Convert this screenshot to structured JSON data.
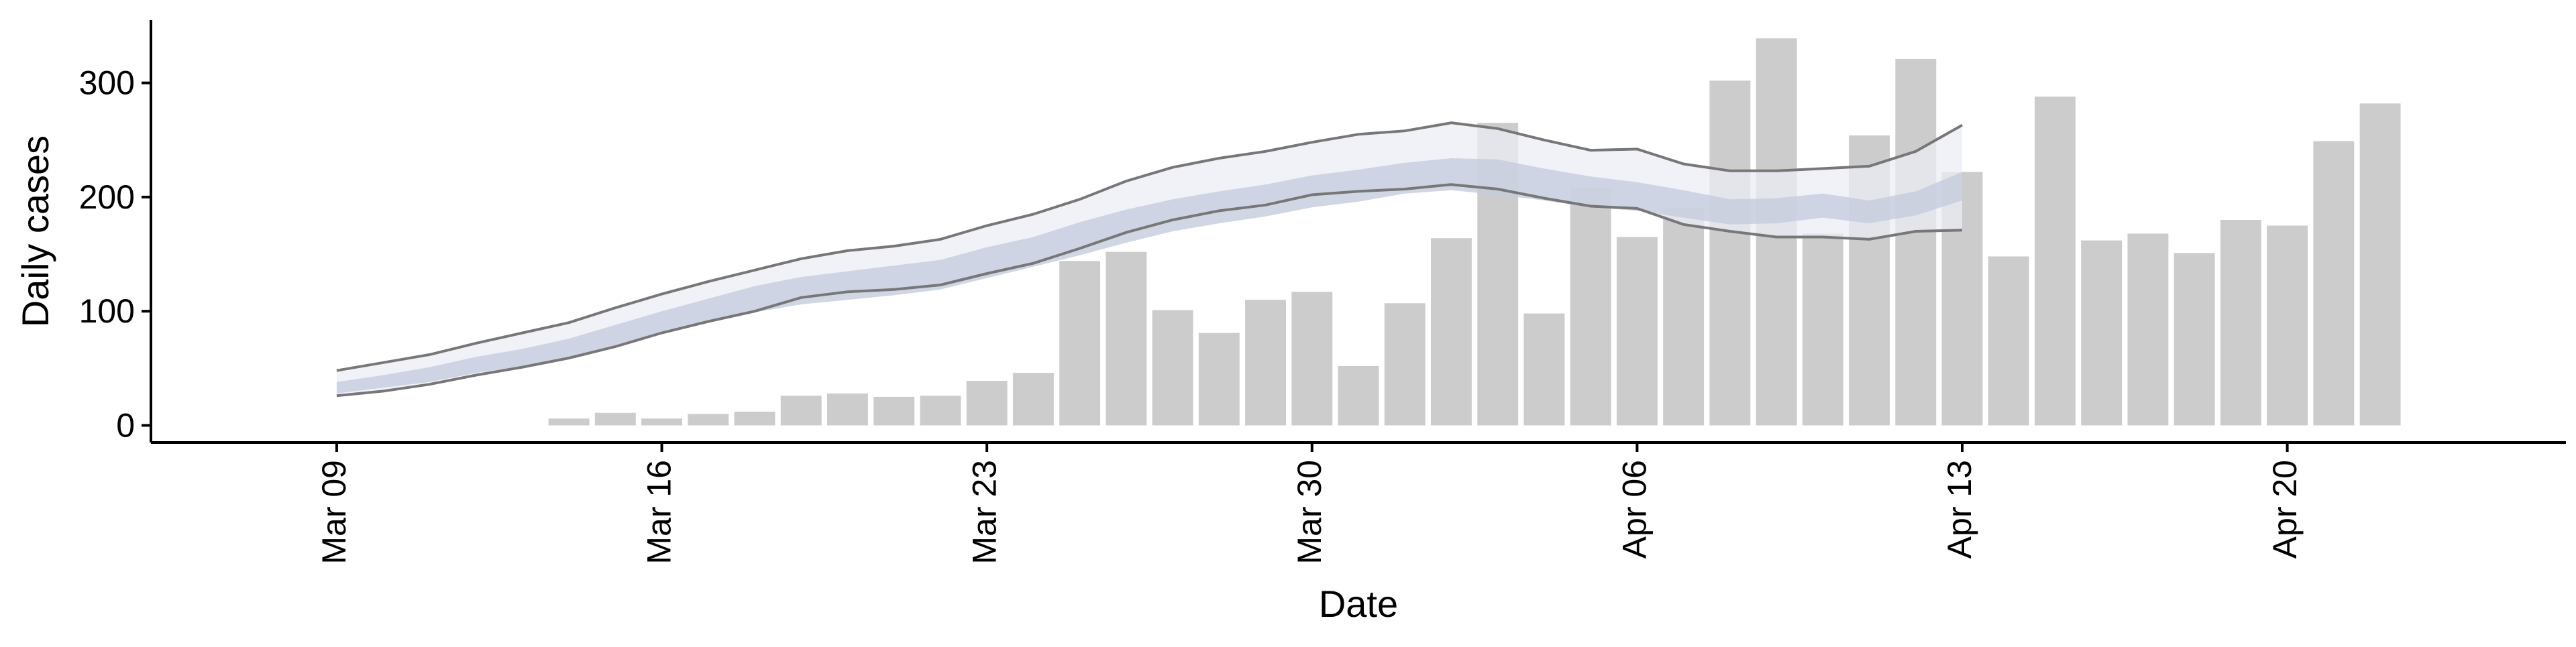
{
  "chart_data": {
    "type": "bar",
    "title": "",
    "xlabel": "Date",
    "ylabel": "Daily cases",
    "ylim": [
      -15,
      355
    ],
    "xlim": [
      "2020-03-05",
      "2020-04-26"
    ],
    "x_ticks": [
      {
        "date": "2020-03-09",
        "label": "Mar 09"
      },
      {
        "date": "2020-03-16",
        "label": "Mar 16"
      },
      {
        "date": "2020-03-23",
        "label": "Mar 23"
      },
      {
        "date": "2020-03-30",
        "label": "Mar 30"
      },
      {
        "date": "2020-04-06",
        "label": "Apr 06"
      },
      {
        "date": "2020-04-13",
        "label": "Apr 13"
      },
      {
        "date": "2020-04-20",
        "label": "Apr 20"
      }
    ],
    "y_ticks": [
      0,
      100,
      200,
      300
    ],
    "grid": false,
    "legend": "none",
    "bars": {
      "color": "#cccccc",
      "x": [
        "2020-03-14",
        "2020-03-15",
        "2020-03-16",
        "2020-03-17",
        "2020-03-18",
        "2020-03-19",
        "2020-03-20",
        "2020-03-21",
        "2020-03-22",
        "2020-03-23",
        "2020-03-24",
        "2020-03-25",
        "2020-03-26",
        "2020-03-27",
        "2020-03-28",
        "2020-03-29",
        "2020-03-30",
        "2020-03-31",
        "2020-04-01",
        "2020-04-02",
        "2020-04-03",
        "2020-04-04",
        "2020-04-05",
        "2020-04-06",
        "2020-04-07",
        "2020-04-08",
        "2020-04-09",
        "2020-04-10",
        "2020-04-11",
        "2020-04-12",
        "2020-04-13",
        "2020-04-14",
        "2020-04-15",
        "2020-04-16",
        "2020-04-17",
        "2020-04-18",
        "2020-04-19",
        "2020-04-20",
        "2020-04-21",
        "2020-04-22"
      ],
      "values": [
        6,
        11,
        6,
        10,
        12,
        26,
        28,
        25,
        26,
        39,
        46,
        144,
        152,
        101,
        81,
        110,
        117,
        52,
        107,
        164,
        265,
        98,
        208,
        165,
        190,
        302,
        339,
        168,
        254,
        321,
        222,
        148,
        288,
        162,
        168,
        151,
        180,
        175,
        249,
        282
      ]
    },
    "estimate": {
      "x": [
        "2020-03-09",
        "2020-03-10",
        "2020-03-11",
        "2020-03-12",
        "2020-03-13",
        "2020-03-14",
        "2020-03-15",
        "2020-03-16",
        "2020-03-17",
        "2020-03-18",
        "2020-03-19",
        "2020-03-20",
        "2020-03-21",
        "2020-03-22",
        "2020-03-23",
        "2020-03-24",
        "2020-03-25",
        "2020-03-26",
        "2020-03-27",
        "2020-03-28",
        "2020-03-29",
        "2020-03-30",
        "2020-03-31",
        "2020-04-01",
        "2020-04-02",
        "2020-04-03",
        "2020-04-04",
        "2020-04-05",
        "2020-04-06",
        "2020-04-07",
        "2020-04-08",
        "2020-04-09",
        "2020-04-10",
        "2020-04-11",
        "2020-04-12",
        "2020-04-13"
      ],
      "outer_upper": [
        48,
        55,
        62,
        72,
        81,
        90,
        103,
        115,
        126,
        136,
        146,
        153,
        157,
        163,
        175,
        185,
        198,
        214,
        226,
        234,
        240,
        248,
        255,
        258,
        265,
        260,
        250,
        241,
        242,
        229,
        223,
        223,
        225,
        227,
        240,
        263
      ],
      "inner_upper": [
        38,
        44,
        51,
        60,
        67,
        76,
        88,
        100,
        111,
        122,
        130,
        135,
        140,
        145,
        156,
        165,
        178,
        189,
        198,
        205,
        211,
        219,
        224,
        230,
        234,
        233,
        225,
        218,
        213,
        206,
        198,
        199,
        203,
        197,
        205,
        222
      ],
      "median": [
        33,
        38,
        44,
        52,
        59,
        67,
        78,
        89,
        99,
        109,
        118,
        122,
        126,
        132,
        142,
        152,
        163,
        174,
        185,
        193,
        200,
        207,
        213,
        220,
        223,
        221,
        215,
        208,
        204,
        198,
        190,
        190,
        196,
        190,
        198,
        212
      ],
      "inner_lower": [
        28,
        33,
        38,
        46,
        52,
        59,
        70,
        80,
        90,
        99,
        106,
        110,
        114,
        119,
        129,
        139,
        149,
        160,
        170,
        177,
        183,
        191,
        196,
        203,
        206,
        202,
        197,
        191,
        188,
        182,
        176,
        177,
        182,
        177,
        184,
        197
      ],
      "outer_lower": [
        26,
        30,
        36,
        44,
        51,
        59,
        69,
        81,
        91,
        100,
        112,
        117,
        119,
        123,
        133,
        142,
        155,
        169,
        180,
        188,
        193,
        202,
        205,
        207,
        211,
        207,
        199,
        192,
        190,
        176,
        170,
        165,
        165,
        163,
        170,
        171
      ],
      "outer_band_color": "#eceef5",
      "inner_band_color": "#c6ccdd",
      "outline_color": "#777777"
    }
  }
}
